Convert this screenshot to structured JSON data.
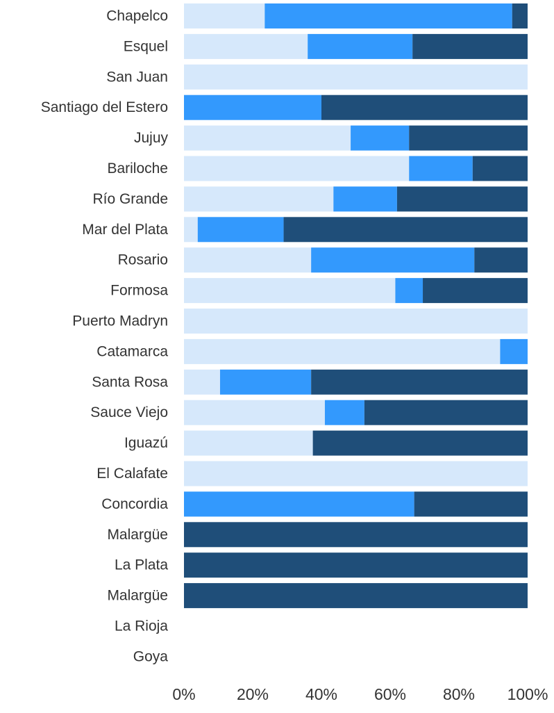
{
  "colors": {
    "light": "#d6e8fb",
    "mid": "#3399fd",
    "dark": "#1f4e79",
    "text": "#333333"
  },
  "chart_data": {
    "type": "bar",
    "orientation": "horizontal",
    "stacked": true,
    "normalized": true,
    "categories": [
      "Chapelco",
      "Esquel",
      "San Juan",
      "Santiago del Estero",
      "Jujuy",
      "Bariloche",
      "Río Grande",
      "Mar del Plata",
      "Rosario",
      "Formosa",
      "Puerto Madryn",
      "Catamarca",
      "Santa Rosa",
      "Sauce Viejo",
      "Iguazú",
      "El Calafate",
      "Concordia",
      "Malargüe",
      "La Plata",
      "Malargüe",
      "La Rioja",
      "Goya"
    ],
    "series": [
      {
        "color": "#d6e8fb",
        "values": [
          23.5,
          36,
          100,
          0,
          48.5,
          65.5,
          43.5,
          4,
          37,
          61.5,
          100,
          92,
          10.5,
          41,
          37.5,
          100,
          0,
          0,
          0,
          0,
          0,
          0
        ]
      },
      {
        "color": "#3399fd",
        "values": [
          72,
          30.5,
          0,
          40,
          17,
          18.5,
          18.5,
          25,
          47.5,
          8,
          0,
          8,
          26.5,
          11.5,
          0,
          0,
          67,
          0,
          0,
          0,
          0,
          0
        ]
      },
      {
        "color": "#1f4e79",
        "values": [
          4.5,
          33.5,
          0,
          60,
          34.5,
          16,
          38,
          71,
          15.5,
          30.5,
          0,
          0,
          63,
          47.5,
          62.5,
          0,
          33,
          100,
          100,
          100,
          0,
          0
        ]
      }
    ],
    "xlim": [
      0,
      100
    ],
    "x_ticks": [
      "0%",
      "20%",
      "40%",
      "60%",
      "80%",
      "100%"
    ],
    "legend": "none",
    "grid": false,
    "title": "",
    "xlabel": "",
    "ylabel": ""
  }
}
